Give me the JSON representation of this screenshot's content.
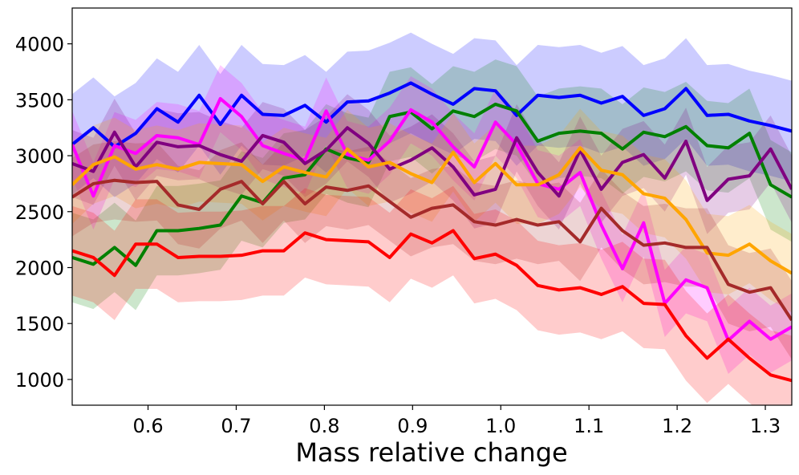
{
  "chart_data": {
    "type": "line",
    "xlabel": "Mass relative change",
    "x": [
      0.514,
      0.538,
      0.562,
      0.586,
      0.61,
      0.634,
      0.658,
      0.682,
      0.706,
      0.73,
      0.754,
      0.778,
      0.802,
      0.826,
      0.85,
      0.874,
      0.898,
      0.922,
      0.946,
      0.97,
      0.994,
      1.018,
      1.042,
      1.066,
      1.09,
      1.114,
      1.138,
      1.162,
      1.186,
      1.21,
      1.234,
      1.258,
      1.282,
      1.306,
      1.33
    ],
    "xlim": [
      0.514,
      1.33
    ],
    "xticks": [
      0.6,
      0.7,
      0.8,
      0.9,
      {
        "value": 1,
        "label": "1.0"
      },
      1.1,
      1.2,
      1.3
    ],
    "ylim": [
      770,
      4320
    ],
    "yticks": [
      1000,
      1500,
      2000,
      2500,
      3000,
      3500,
      4000
    ],
    "band_alpha": 0.2,
    "series": [
      {
        "name": "blue",
        "color": "blue",
        "error": 450,
        "values": [
          3100,
          3250,
          3080,
          3200,
          3420,
          3300,
          3540,
          3280,
          3540,
          3370,
          3360,
          3450,
          3300,
          3480,
          3490,
          3560,
          3650,
          3550,
          3460,
          3600,
          3580,
          3360,
          3540,
          3520,
          3540,
          3470,
          3530,
          3360,
          3420,
          3600,
          3360,
          3370,
          3310,
          3270,
          3220
        ]
      },
      {
        "name": "green",
        "color": "green",
        "error": 400,
        "values": [
          2090,
          2030,
          2180,
          2020,
          2330,
          2330,
          2350,
          2380,
          2640,
          2580,
          2800,
          2830,
          3060,
          2980,
          2940,
          3350,
          3390,
          3240,
          3400,
          3350,
          3460,
          3400,
          3130,
          3200,
          3220,
          3200,
          3060,
          3210,
          3170,
          3260,
          3090,
          3070,
          3200,
          2740,
          2630
        ]
      },
      {
        "name": "magenta",
        "color": "magenta",
        "error": 300,
        "values": [
          3100,
          2640,
          3090,
          3020,
          3180,
          3160,
          3100,
          3510,
          3350,
          3090,
          3020,
          2960,
          3400,
          3010,
          2960,
          3130,
          3410,
          3300,
          3080,
          2900,
          3300,
          3100,
          2750,
          2700,
          2850,
          2380,
          1990,
          2400,
          1680,
          1890,
          1820,
          1350,
          1520,
          1360,
          1470
        ]
      },
      {
        "name": "purple",
        "color": "purple",
        "error": 300,
        "values": [
          2930,
          2860,
          3210,
          2900,
          3120,
          3080,
          3090,
          3010,
          2950,
          3180,
          3120,
          2930,
          3050,
          3250,
          3110,
          2880,
          2960,
          3070,
          2900,
          2650,
          2700,
          3160,
          2850,
          2640,
          3050,
          2700,
          2940,
          3010,
          2800,
          3130,
          2600,
          2790,
          2820,
          3060,
          2700
        ]
      },
      {
        "name": "orange",
        "color": "orange",
        "error": 350,
        "values": [
          2740,
          2920,
          2990,
          2880,
          2920,
          2880,
          2940,
          2930,
          2920,
          2770,
          2900,
          2850,
          2810,
          3060,
          2900,
          2940,
          2840,
          2760,
          3030,
          2760,
          2930,
          2740,
          2740,
          2830,
          3070,
          2870,
          2830,
          2660,
          2620,
          2430,
          2130,
          2110,
          2210,
          2060,
          1950
        ]
      },
      {
        "name": "brown",
        "color": "brown",
        "error": 350,
        "values": [
          2630,
          2750,
          2780,
          2760,
          2770,
          2560,
          2520,
          2700,
          2770,
          2570,
          2770,
          2570,
          2720,
          2690,
          2730,
          2590,
          2450,
          2530,
          2560,
          2410,
          2380,
          2430,
          2380,
          2410,
          2230,
          2530,
          2330,
          2200,
          2220,
          2180,
          2180,
          1850,
          1780,
          1820,
          1530
        ]
      },
      {
        "name": "red",
        "color": "red",
        "error": 400,
        "values": [
          2150,
          2090,
          1930,
          2210,
          2210,
          2090,
          2100,
          2100,
          2110,
          2150,
          2150,
          2310,
          2250,
          2240,
          2230,
          2090,
          2300,
          2220,
          2330,
          2080,
          2120,
          2020,
          1840,
          1800,
          1820,
          1760,
          1830,
          1680,
          1670,
          1390,
          1190,
          1360,
          1190,
          1040,
          990
        ]
      }
    ]
  }
}
